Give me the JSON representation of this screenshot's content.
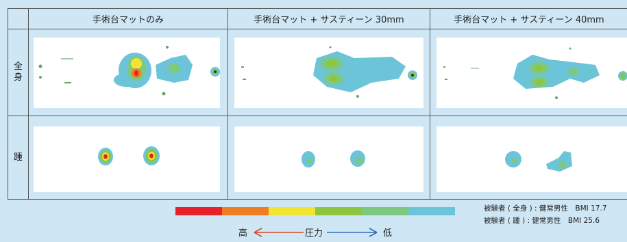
{
  "columns": [
    "手術台マットのみ",
    "手術台マット + サスティーン 30mm",
    "手術台マット + サスティーン 40mm"
  ],
  "rows": [
    "全身",
    "踵"
  ],
  "legend": {
    "high_label": "高",
    "pressure_label": "圧力",
    "low_label": "低",
    "colors": [
      "#e8202a",
      "#ef7d22",
      "#f2e532",
      "#8cc63f",
      "#7ec87f",
      "#6cc4d8"
    ],
    "high_arrow_color": "#d9442b",
    "low_arrow_color": "#2e6db4"
  },
  "notes": [
    "被験者 ( 全身 ) : 健常男性　BMI 17.7",
    "被験者 ( 踵 ) : 健常男性　BMI 25.6"
  ]
}
